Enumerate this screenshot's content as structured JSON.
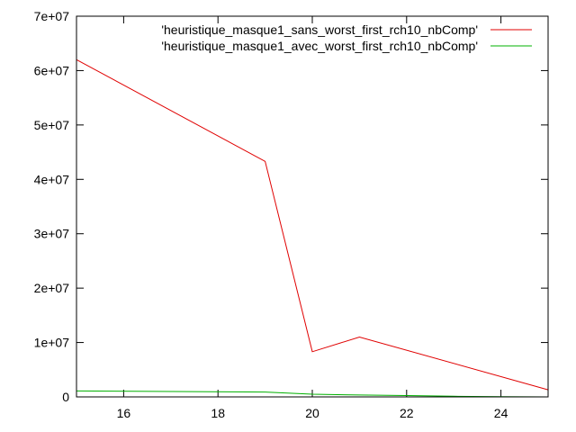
{
  "chart_data": {
    "type": "line",
    "title": "",
    "xlabel": "",
    "ylabel": "",
    "xlim": [
      15,
      25
    ],
    "ylim": [
      0,
      70000000
    ],
    "x_ticks": [
      16,
      18,
      20,
      22,
      24
    ],
    "x_tick_labels": [
      "16",
      "18",
      "20",
      "22",
      "24"
    ],
    "y_ticks": [
      0,
      10000000,
      20000000,
      30000000,
      40000000,
      50000000,
      60000000,
      70000000
    ],
    "y_tick_labels": [
      "0",
      "1e+07",
      "2e+07",
      "3e+07",
      "4e+07",
      "5e+07",
      "6e+07",
      "7e+07"
    ],
    "grid": false,
    "legend_position": "top-right",
    "series": [
      {
        "name": "'heuristique_masque1_sans_worst_first_rch10_nbComp'",
        "color": "#e00000",
        "points": [
          [
            15,
            62000000
          ],
          [
            19,
            43300000
          ],
          [
            20,
            8300000
          ],
          [
            21,
            11000000
          ],
          [
            25,
            1300000
          ]
        ]
      },
      {
        "name": "'heuristique_masque1_avec_worst_first_rch10_nbComp'",
        "color": "#00b000",
        "points": [
          [
            15,
            1100000
          ],
          [
            19,
            900000
          ],
          [
            20,
            500000
          ],
          [
            21,
            350000
          ],
          [
            22,
            250000
          ],
          [
            23,
            120000
          ],
          [
            24,
            50000
          ],
          [
            25,
            0
          ]
        ]
      }
    ]
  }
}
